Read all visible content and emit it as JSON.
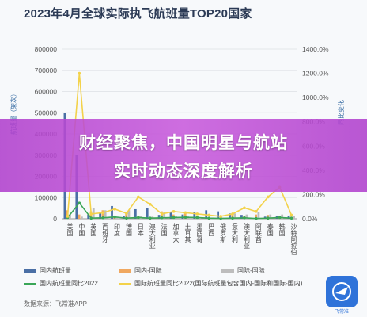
{
  "title": "2023年4月全球实际执飞航班量TOP20国家",
  "overlay": {
    "line1": "财经聚焦，中国明星与航站",
    "line2": "实时动态深度解析"
  },
  "source": "数据来源：飞常准APP",
  "logo_text": "飞常准",
  "colors": {
    "domestic": "#4a6fa5",
    "intl_cn": "#f0a860",
    "intl": "#bdbdbd",
    "domestic_yoy": "#3aa657",
    "intl_yoy": "#f3d24a"
  },
  "chart_data": {
    "type": "bar",
    "title": "2023年4月全球实际执飞航班量TOP20国家",
    "categories": [
      "美国",
      "中国",
      "英国",
      "西班牙",
      "印度",
      "德国",
      "日本",
      "澳大利亚",
      "法国",
      "加拿大",
      "土耳其",
      "墨西哥",
      "巴西",
      "俄罗斯",
      "意大利",
      "澳大利亚",
      "阿联酋",
      "泰国",
      "韩国",
      "沙特阿拉伯"
    ],
    "y_left": {
      "label": "航班量（架次）",
      "ticks": [
        "0",
        "100000",
        "200000",
        "300000",
        "400000",
        "500000",
        "600000",
        "700000",
        "800000"
      ],
      "ylim": [
        0,
        800000
      ]
    },
    "y_right": {
      "label": "同比变化",
      "ticks": [
        "0.0%",
        "200.0%",
        "400.0%",
        "600.0%",
        "800.0%",
        "1000.0%",
        "1200.0%",
        "1400.0%"
      ],
      "ylim": [
        0,
        1400
      ]
    },
    "series": [
      {
        "name": "国内航班量",
        "kind": "bar",
        "axis": "left",
        "values": [
          500000,
          300000,
          20000,
          28000,
          60000,
          15000,
          45000,
          50000,
          18000,
          30000,
          20000,
          30000,
          40000,
          35000,
          25000,
          18000,
          3000,
          10000,
          12000,
          15000
        ]
      },
      {
        "name": "国内-国际",
        "kind": "bar",
        "axis": "left",
        "values": [
          40000,
          20000,
          35000,
          40000,
          15000,
          30000,
          10000,
          8000,
          35000,
          20000,
          25000,
          10000,
          5000,
          6000,
          20000,
          15000,
          20000,
          18000,
          15000,
          10000
        ]
      },
      {
        "name": "国际-国际",
        "kind": "bar",
        "axis": "left",
        "values": [
          20000,
          10000,
          50000,
          40000,
          8000,
          40000,
          15000,
          10000,
          30000,
          15000,
          12000,
          8000,
          5000,
          5000,
          25000,
          20000,
          30000,
          20000,
          20000,
          12000
        ]
      },
      {
        "name": "国内航班量同比2022",
        "kind": "line",
        "axis": "right",
        "values": [
          10,
          130,
          5,
          8,
          15,
          5,
          10,
          5,
          8,
          10,
          12,
          10,
          5,
          3,
          5,
          8,
          2,
          5,
          10,
          5
        ]
      },
      {
        "name": "国际航班量同比2022(国际航班量包含国内-国际和国际-国内)",
        "kind": "line",
        "axis": "right",
        "values": [
          20,
          1200,
          40,
          50,
          80,
          45,
          180,
          120,
          40,
          60,
          50,
          40,
          30,
          20,
          40,
          90,
          60,
          180,
          260,
          30
        ]
      }
    ],
    "legend_position": "bottom"
  }
}
